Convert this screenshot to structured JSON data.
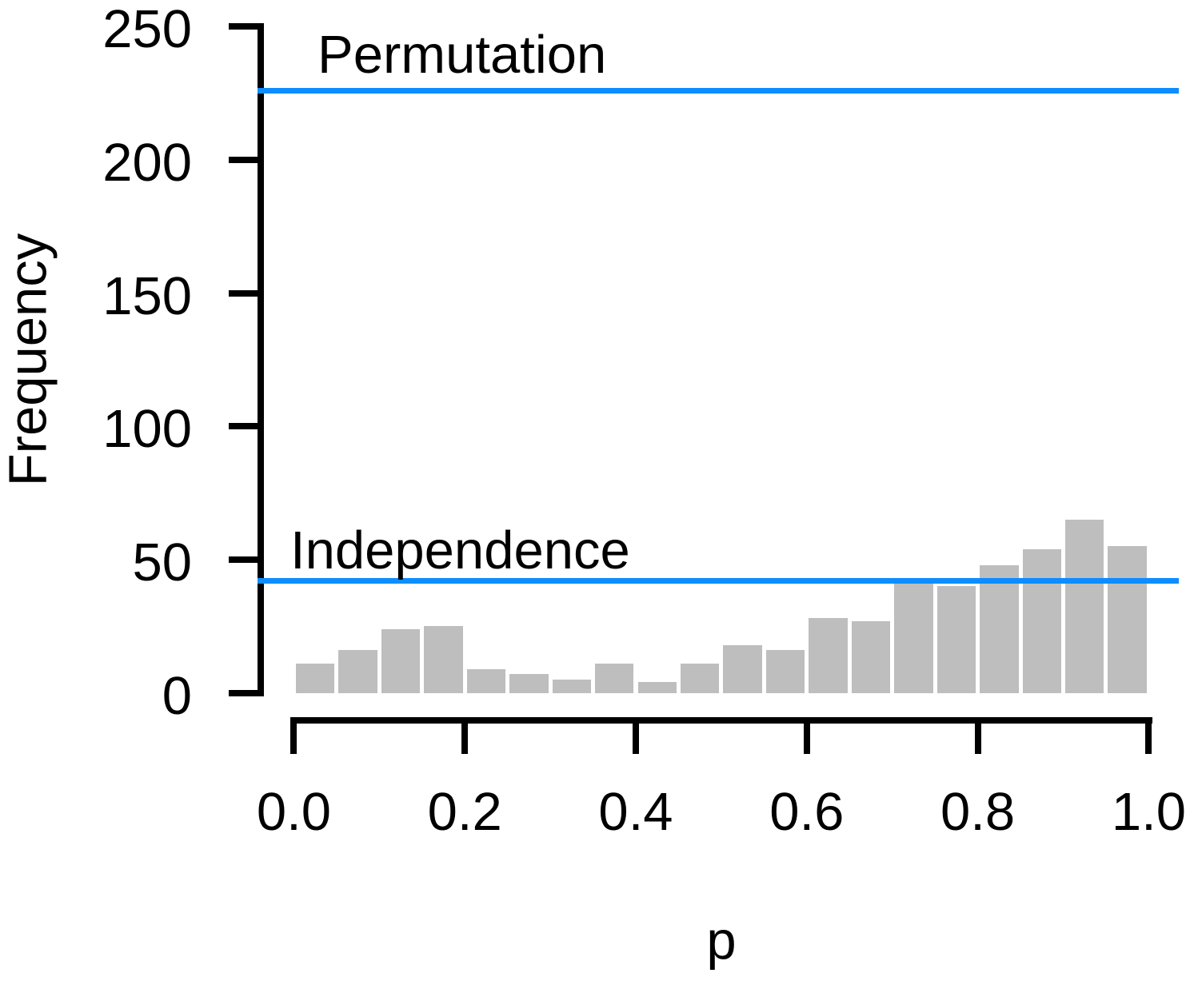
{
  "chart_data": {
    "type": "bar",
    "subtype": "histogram",
    "title": "",
    "xlabel": "p",
    "ylabel": "Frequency",
    "bin_start": 0.0,
    "bin_width": 0.05,
    "counts": [
      11,
      16,
      24,
      25,
      9,
      7,
      5,
      11,
      4,
      11,
      18,
      16,
      28,
      27,
      41,
      40,
      48,
      54,
      65,
      55
    ],
    "xlim": [
      0.0,
      1.0
    ],
    "ylim": [
      0,
      250
    ],
    "xticks": [
      0.0,
      0.2,
      0.4,
      0.6,
      0.8,
      1.0
    ],
    "xtick_labels": [
      "0.0",
      "0.2",
      "0.4",
      "0.6",
      "0.8",
      "1.0"
    ],
    "yticks": [
      0,
      50,
      100,
      150,
      200,
      250
    ],
    "ytick_labels": [
      "0",
      "50",
      "100",
      "150",
      "200",
      "250"
    ],
    "grid": "off",
    "legend_position": "none",
    "bar_color": "#bebebe",
    "axis_color": "#000000",
    "text_color": "#000000",
    "reference_lines": [
      {
        "label": "Permutation",
        "value": 226,
        "color": "#0d8dff"
      },
      {
        "label": "Independence",
        "value": 42,
        "color": "#0d8dff"
      }
    ]
  }
}
